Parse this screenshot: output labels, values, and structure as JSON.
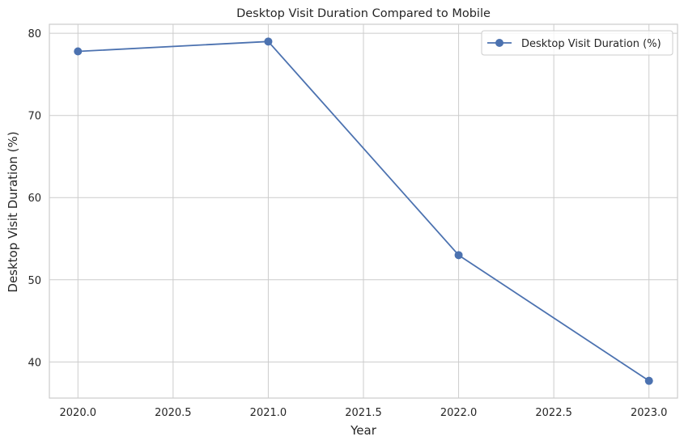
{
  "chart_data": {
    "type": "line",
    "title": "Desktop Visit Duration Compared to Mobile",
    "xlabel": "Year",
    "ylabel": "Desktop Visit Duration (%)",
    "x": [
      2020,
      2021,
      2022,
      2023
    ],
    "series": [
      {
        "name": "Desktop Visit Duration (%)",
        "values": [
          77.8,
          79.0,
          53.0,
          37.7
        ],
        "color": "#4c72b0",
        "marker": "circle"
      }
    ],
    "xlim": [
      2019.85,
      2023.15
    ],
    "ylim": [
      35.6,
      81.1
    ],
    "xticks": [
      2020.0,
      2020.5,
      2021.0,
      2021.5,
      2022.0,
      2022.5,
      2023.0
    ],
    "xtick_labels": [
      "2020.0",
      "2020.5",
      "2021.0",
      "2021.5",
      "2022.0",
      "2022.5",
      "2023.0"
    ],
    "yticks": [
      40,
      50,
      60,
      70,
      80
    ],
    "ytick_labels": [
      "40",
      "50",
      "60",
      "70",
      "80"
    ],
    "grid": true,
    "legend_position": "top-right",
    "colors": {
      "grid": "#cccccc",
      "spine": "#cccccc",
      "text": "#262626"
    }
  }
}
